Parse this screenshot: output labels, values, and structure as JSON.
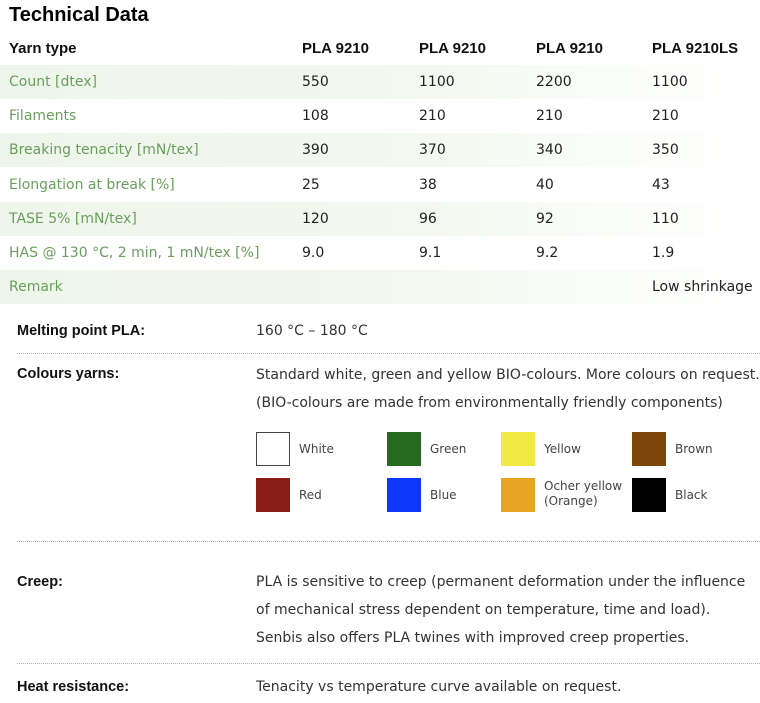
{
  "title": "Technical Data",
  "table": {
    "header": {
      "label": "Yarn type",
      "cols": [
        "PLA 9210",
        "PLA 9210",
        "PLA 9210",
        "PLA 9210LS"
      ]
    },
    "rows": [
      {
        "label": "Count [dtex]",
        "values": [
          "550",
          "1100",
          "2200",
          "1100"
        ]
      },
      {
        "label": "Filaments",
        "values": [
          "108",
          "210",
          "210",
          "210"
        ]
      },
      {
        "label": "Breaking tenacity [mN/tex]",
        "values": [
          "390",
          "370",
          "340",
          "350"
        ]
      },
      {
        "label": "Elongation at break [%]",
        "values": [
          "25",
          "38",
          "40",
          "43"
        ]
      },
      {
        "label": "TASE 5% [mN/tex]",
        "values": [
          "120",
          "96",
          "92",
          "110"
        ]
      },
      {
        "label": "HAS @ 130 °C, 2 min, 1 mN/tex [%]",
        "values": [
          "9.0",
          "9.1",
          "9.2",
          "1.9"
        ]
      },
      {
        "label": "Remark",
        "values": [
          "",
          "",
          "",
          "Low shrinkage"
        ]
      }
    ]
  },
  "melting": {
    "label": "Melting point PLA:",
    "value": "160 °C – 180 °C"
  },
  "colours": {
    "label": "Colours yarns:",
    "line1": "Standard white, green and yellow BIO-colours. More colours on request.",
    "line2": "(BIO-colours are made from environmentally friendly components)",
    "swatches": [
      {
        "name": "White",
        "color": "#ffffff"
      },
      {
        "name": "Green",
        "color": "#276a1f"
      },
      {
        "name": "Yellow",
        "color": "#f3e944"
      },
      {
        "name": "Brown",
        "color": "#7c4509"
      },
      {
        "name": "Red",
        "color": "#8b1c18"
      },
      {
        "name": "Blue",
        "color": "#0f38fb"
      },
      {
        "name": "Ocher yellow (Orange)",
        "color": "#e8a523"
      },
      {
        "name": "Black",
        "color": "#000000"
      }
    ]
  },
  "creep": {
    "label": "Creep:",
    "lines": [
      "PLA is sensitive to creep (permanent deformation under the influence",
      "of mechanical stress dependent on temperature, time and load).",
      "Senbis also offers PLA twines with improved creep properties."
    ]
  },
  "heat": {
    "label": "Heat resistance:",
    "value": "Tenacity vs temperature curve available on request."
  }
}
